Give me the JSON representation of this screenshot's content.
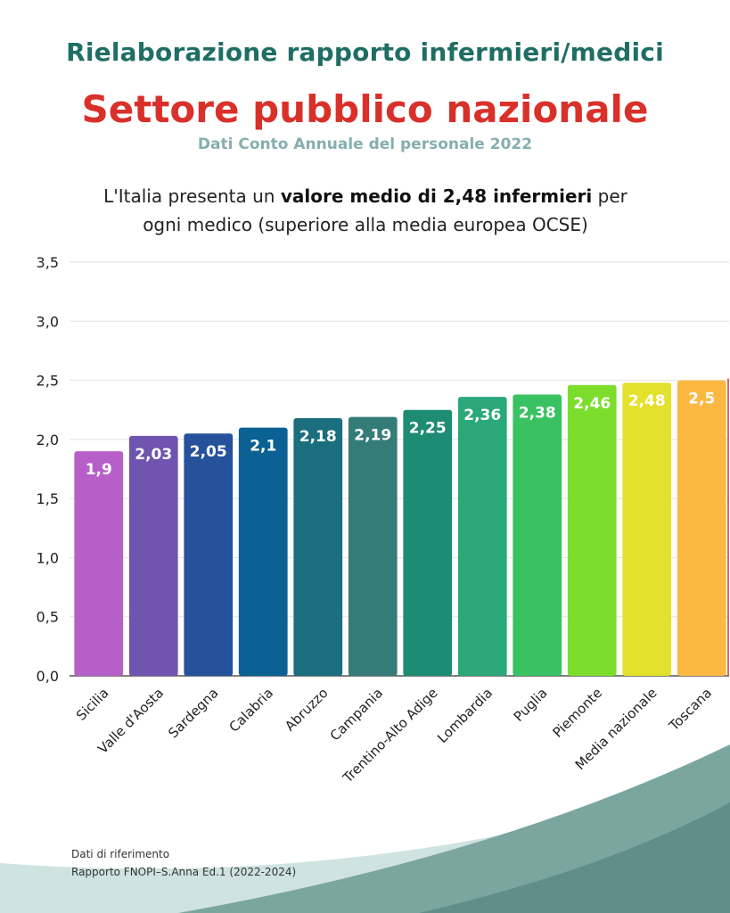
{
  "header": {
    "title": "Rielaborazione rapporto infermieri/medici",
    "subtitle": "Settore pubblico nazionale",
    "source_line": "Dati Conto Annuale del personale 2022"
  },
  "lead": {
    "part1": "L'Italia presenta un ",
    "bold": "valore medio di 2,48 infermieri",
    "part2": " per ogni medico (superiore alla media europea OCSE)"
  },
  "footer": {
    "line1": "Dati di riferimento",
    "line2": "Rapporto FNOPI–S.Anna Ed.1 (2022-2024)"
  },
  "chart_data": {
    "type": "bar",
    "categories": [
      "Sicilia",
      "Valle d'Aosta",
      "Sardegna",
      "Calabria",
      "Abruzzo",
      "Campania",
      "Trentino-Alto Adige",
      "Lombardia",
      "Puglia",
      "Piemonte",
      "Media nazionale",
      "Toscana"
    ],
    "values": [
      1.9,
      2.03,
      2.05,
      2.1,
      2.18,
      2.19,
      2.25,
      2.36,
      2.38,
      2.46,
      2.48,
      2.5
    ],
    "value_labels": [
      "1,9",
      "2,03",
      "2,05",
      "2,1",
      "2,18",
      "2,19",
      "2,25",
      "2,36",
      "2,38",
      "2,46",
      "2,48",
      "2,5"
    ],
    "ylim": [
      0,
      3.5
    ],
    "yticks": [
      0,
      0.5,
      1.0,
      1.5,
      2.0,
      2.5,
      3.0,
      3.5
    ],
    "ytick_labels": [
      "0,0",
      "0,5",
      "1,0",
      "1,5",
      "2,0",
      "2,5",
      "3,0",
      "3,5"
    ],
    "grid": true,
    "bar_colors": [
      "#b65fc8",
      "#6f55b0",
      "#25529a",
      "#0b6094",
      "#1a6e7d",
      "#357c78",
      "#1e8b73",
      "#2ba87a",
      "#3ac262",
      "#7ddd2c",
      "#e4e12c",
      "#fbb841"
    ],
    "accent_line_color": "#d9302a"
  }
}
